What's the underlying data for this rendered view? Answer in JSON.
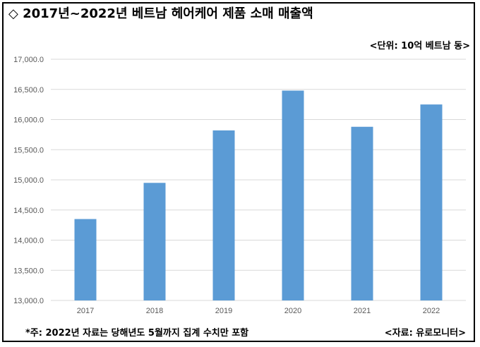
{
  "header": {
    "title": "◇ 2017년~2022년 베트남 헤어케어 제품 소매 매출액",
    "unit": "<단위: 10억 베트남 동>"
  },
  "footer": {
    "note": "*주: 2022년 자료는 당해년도 5월까지 집계 수치만 포함",
    "source": "<자료: 유로모니터>"
  },
  "chart_data": {
    "type": "bar",
    "title": "2017년~2022년 베트남 헤어케어 제품 소매 매출액",
    "categories": [
      "2017",
      "2018",
      "2019",
      "2020",
      "2021",
      "2022"
    ],
    "values": [
      14350,
      14950,
      15820,
      16480,
      15880,
      16250
    ],
    "ylim": [
      13000,
      17000
    ],
    "yticks": [
      13000,
      13500,
      14000,
      14500,
      15000,
      15500,
      16000,
      16500,
      17000
    ],
    "ytick_labels": [
      "13,000.0",
      "13,500.0",
      "14,000.0",
      "14,500.0",
      "15,000.0",
      "15,500.0",
      "16,000.0",
      "16,500.0",
      "17,000.0"
    ],
    "grid": true,
    "bar_color": "#5b9bd5",
    "grid_color": "#d9d9d9"
  }
}
